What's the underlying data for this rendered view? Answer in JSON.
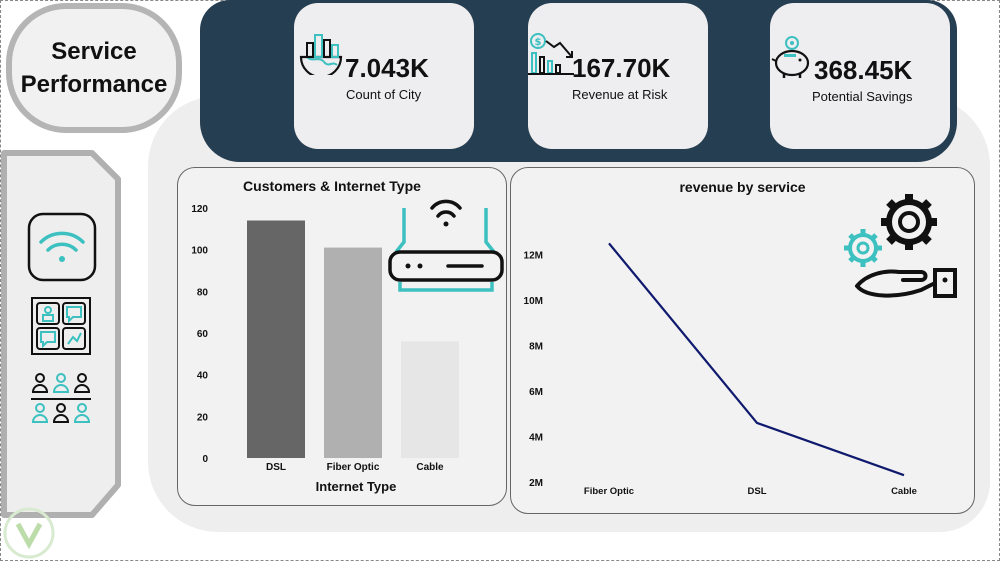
{
  "page": {
    "title": "Service\nPerformance"
  },
  "kpis": [
    {
      "value": "7.043K",
      "label": "Count of City",
      "icon": "city-map-icon"
    },
    {
      "value": "167.70K",
      "label": "Revenue at Risk",
      "icon": "falling-revenue-icon"
    },
    {
      "value": "368.45K",
      "label": "Potential Savings",
      "icon": "piggy-bank-icon"
    }
  ],
  "nav": [
    {
      "icon": "wifi-icon"
    },
    {
      "icon": "support-grid-icon"
    },
    {
      "icon": "people-group-icon"
    }
  ],
  "colors": {
    "accent": "#3cc0c0",
    "band": "#263e51",
    "line": "#0f1a6e"
  },
  "charts": {
    "internet": {
      "title": "Customers & Internet Type",
      "xlabel": "Internet Type",
      "icon": "router-icon"
    },
    "revenue": {
      "title": "revenue by service",
      "icon": "gear-hand-icon"
    }
  },
  "chart_data": [
    {
      "type": "bar",
      "title": "Customers & Internet Type",
      "xlabel": "Internet Type",
      "ylabel": "",
      "categories": [
        "DSL",
        "Fiber Optic",
        "Cable"
      ],
      "values": [
        114,
        101,
        56
      ],
      "colors": [
        "#666666",
        "#b0b0b0",
        "#e6e6e6"
      ],
      "ylim": [
        0,
        120
      ],
      "yticks": [
        0,
        20,
        40,
        60,
        80,
        100,
        120
      ]
    },
    {
      "type": "line",
      "title": "revenue by service",
      "categories": [
        "Fiber Optic",
        "DSL",
        "Cable"
      ],
      "values": [
        12.5,
        4.6,
        2.3
      ],
      "units": "M",
      "ylim": [
        2,
        13
      ],
      "yticks": [
        2,
        4,
        6,
        8,
        10,
        12
      ],
      "ytick_labels": [
        "2M",
        "4M",
        "6M",
        "8M",
        "10M",
        "12M"
      ]
    }
  ]
}
